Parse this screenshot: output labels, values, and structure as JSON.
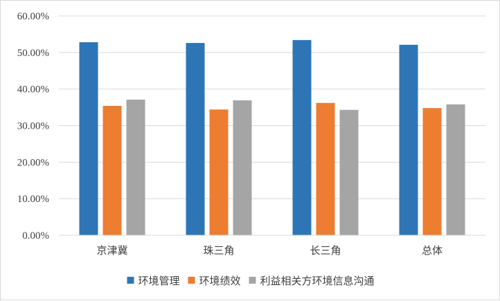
{
  "chart_data": {
    "type": "bar",
    "categories": [
      "京津冀",
      "珠三角",
      "长三角",
      "总体"
    ],
    "series": [
      {
        "name": "环境管理",
        "color": "#2e75b6",
        "values": [
          52.8,
          52.6,
          53.4,
          52.1
        ]
      },
      {
        "name": "环境绩效",
        "color": "#ed7d31",
        "values": [
          35.4,
          34.4,
          36.2,
          34.8
        ]
      },
      {
        "name": "利益相关方环境信息沟通",
        "color": "#a5a5a5",
        "values": [
          37.1,
          36.9,
          34.3,
          35.8
        ]
      }
    ],
    "ylim": [
      0,
      60
    ],
    "yticks": [
      0,
      10,
      20,
      30,
      40,
      50,
      60
    ],
    "ytick_labels": [
      "0.00%",
      "10.00%",
      "20.00%",
      "30.00%",
      "40.00%",
      "50.00%",
      "60.00%"
    ],
    "grid": true,
    "legend_position": "bottom"
  }
}
